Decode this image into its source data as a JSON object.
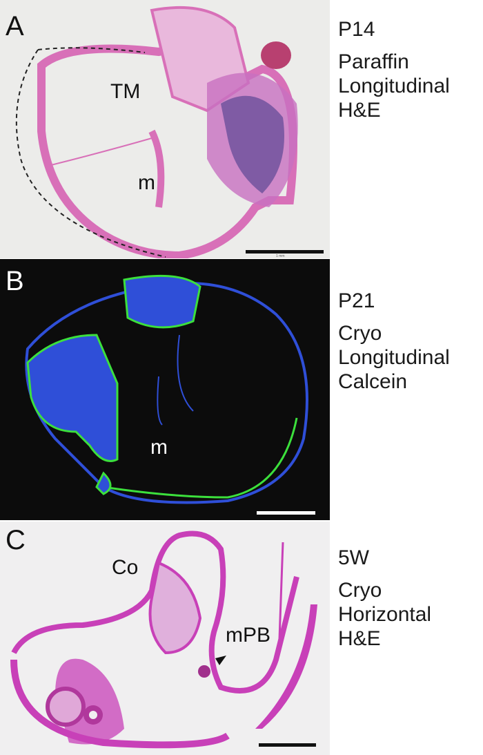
{
  "panels": [
    {
      "letter": "A",
      "labels": {
        "tm": "TM",
        "m": "m"
      },
      "scale_bar_text": "1 mm",
      "stage": "P14",
      "details": [
        "Paraffin",
        "Longitudinal",
        "H&E"
      ],
      "colors": {
        "background": "#ececea",
        "tissue": "#d870b8",
        "bone": "#4a3c8c"
      }
    },
    {
      "letter": "B",
      "labels": {
        "m": "m"
      },
      "stage": "P21",
      "details": [
        "Cryo",
        "Longitudinal",
        "Calcein"
      ],
      "colors": {
        "background": "#0c0c0c",
        "tissue": "#2f4fd8",
        "calcein": "#3ce03c"
      }
    },
    {
      "letter": "C",
      "labels": {
        "co": "Co",
        "mpb": "mPB"
      },
      "stage": "5W",
      "details": [
        "Cryo",
        "Horizontal",
        "H&E"
      ],
      "colors": {
        "background": "#f0eff0",
        "tissue": "#c840b8"
      }
    }
  ]
}
